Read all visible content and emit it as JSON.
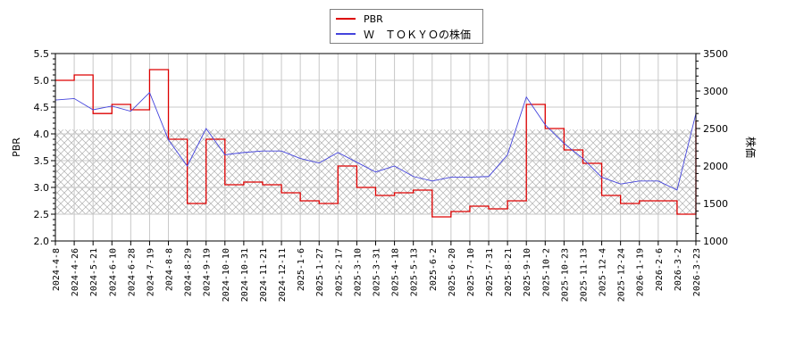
{
  "legend": {
    "items": [
      {
        "label": "PBR",
        "color": "#dd0000"
      },
      {
        "label": "Ｗ　ＴＯＫＹＯの株価",
        "color": "#4444dd"
      }
    ]
  },
  "axes": {
    "left_label": "PBR",
    "right_label": "株価",
    "left_ticks": [
      "2.0",
      "2.5",
      "3.0",
      "3.5",
      "4.0",
      "4.5",
      "5.0",
      "5.5"
    ],
    "right_ticks": [
      "1000",
      "1500",
      "2000",
      "2500",
      "3000",
      "3500"
    ]
  },
  "chart_data": {
    "type": "line",
    "title": "",
    "xlabel": "",
    "ylabel": "PBR",
    "ylabel_right": "株価",
    "ylim": [
      2.0,
      5.5
    ],
    "ylim_right": [
      1000,
      3500
    ],
    "grid": true,
    "legend_position": "top-center",
    "shaded_band_pbr": [
      2.5,
      4.08
    ],
    "x_ticks": [
      "2024-4-8",
      "2024-4-26",
      "2024-5-21",
      "2024-6-10",
      "2024-6-28",
      "2024-7-19",
      "2024-8-8",
      "2024-8-29",
      "2024-9-19",
      "2024-10-10",
      "2024-10-31",
      "2024-11-21",
      "2024-12-11",
      "2025-1-6",
      "2025-1-27",
      "2025-2-17",
      "2025-3-10",
      "2025-3-31",
      "2025-4-18",
      "2025-5-13",
      "2025-6-2",
      "2025-6-20",
      "2025-7-10",
      "2025-7-31",
      "2025-8-21",
      "2025-9-10",
      "2025-10-2",
      "2025-10-23",
      "2025-11-13",
      "2025-12-4",
      "2025-12-24",
      "2026-1-19",
      "2026-2-6",
      "2026-3-2",
      "2026-3-23"
    ],
    "series": [
      {
        "name": "PBR",
        "axis": "left",
        "color": "#dd0000",
        "x": [
          "2024-4-8",
          "2024-4-26",
          "2024-5-21",
          "2024-6-10",
          "2024-6-28",
          "2024-7-19",
          "2024-8-8",
          "2024-8-29",
          "2024-9-19",
          "2024-10-10",
          "2024-10-31",
          "2024-11-21",
          "2024-12-11",
          "2025-1-6",
          "2025-1-27",
          "2025-2-17",
          "2025-3-10",
          "2025-3-31",
          "2025-4-18",
          "2025-5-13",
          "2025-6-2",
          "2025-6-20",
          "2025-7-10",
          "2025-7-31",
          "2025-8-21",
          "2025-9-10",
          "2025-10-2",
          "2025-10-23",
          "2025-11-13",
          "2025-12-4",
          "2025-12-24",
          "2026-1-19",
          "2026-2-6",
          "2026-3-2",
          "2026-3-23"
        ],
        "values": [
          5.0,
          5.1,
          4.38,
          4.55,
          4.45,
          5.2,
          3.9,
          2.7,
          3.9,
          3.05,
          3.1,
          3.05,
          2.9,
          2.75,
          2.7,
          3.4,
          3.0,
          2.85,
          2.9,
          2.95,
          2.45,
          2.55,
          2.65,
          2.6,
          2.75,
          4.55,
          4.1,
          3.7,
          3.45,
          2.85,
          2.7,
          2.75,
          2.75,
          2.5,
          4.25
        ]
      },
      {
        "name": "Ｗ　ＴＯＫＹＯの株価",
        "axis": "right",
        "color": "#4444dd",
        "x": [
          "2024-4-8",
          "2024-4-26",
          "2024-5-21",
          "2024-6-10",
          "2024-6-28",
          "2024-7-19",
          "2024-8-8",
          "2024-8-29",
          "2024-9-19",
          "2024-10-10",
          "2024-10-31",
          "2024-11-21",
          "2024-12-11",
          "2025-1-6",
          "2025-1-27",
          "2025-2-17",
          "2025-3-10",
          "2025-3-31",
          "2025-4-18",
          "2025-5-13",
          "2025-6-2",
          "2025-6-20",
          "2025-7-10",
          "2025-7-31",
          "2025-8-21",
          "2025-9-10",
          "2025-10-2",
          "2025-10-23",
          "2025-11-13",
          "2025-12-4",
          "2025-12-24",
          "2026-1-19",
          "2026-2-6",
          "2026-3-2",
          "2026-3-23"
        ],
        "values": [
          2880,
          2900,
          2750,
          2800,
          2730,
          2980,
          2350,
          2000,
          2500,
          2150,
          2180,
          2200,
          2200,
          2100,
          2040,
          2180,
          2050,
          1920,
          2000,
          1860,
          1800,
          1850,
          1850,
          1860,
          2150,
          2920,
          2550,
          2300,
          2100,
          1850,
          1760,
          1800,
          1800,
          1680,
          2700
        ]
      }
    ]
  }
}
